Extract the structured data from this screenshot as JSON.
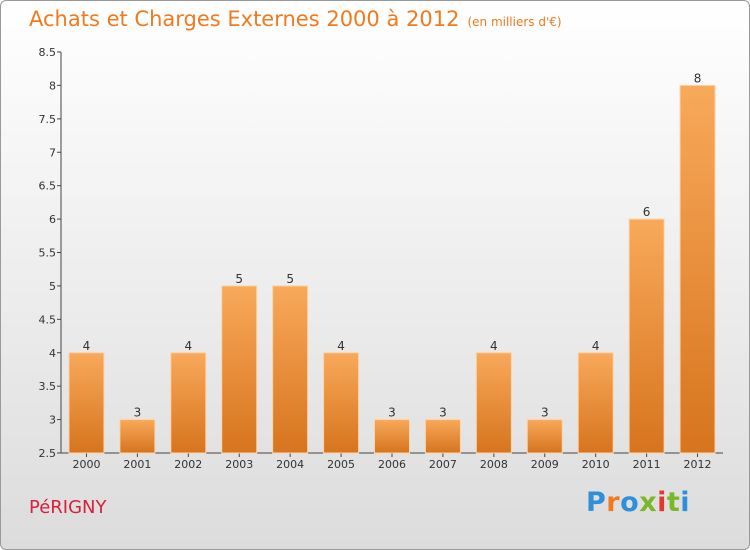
{
  "header": {
    "title": "Achats et Charges Externes 2000 à 2012",
    "unit": "(en milliers d'€)"
  },
  "footer": {
    "place": "PéRIGNY",
    "brand": "Proxiti"
  },
  "colors": {
    "title": "#f07a1e",
    "place": "#d8203a",
    "bar_top": "#f8a95a",
    "bar_bottom": "#d7741e",
    "brand_letters": [
      "#2f8fd8",
      "#f07a1e",
      "#2f8fd8",
      "#7ab828",
      "#e23a2a",
      "#7ab828",
      "#2f8fd8"
    ]
  },
  "chart_data": {
    "type": "bar",
    "title": "Achats et Charges Externes 2000 à 2012",
    "xlabel": "",
    "ylabel": "",
    "categories": [
      "2000",
      "2001",
      "2002",
      "2003",
      "2004",
      "2005",
      "2006",
      "2007",
      "2008",
      "2009",
      "2010",
      "2011",
      "2012"
    ],
    "values": [
      4,
      3,
      4,
      5,
      5,
      4,
      3,
      3,
      4,
      3,
      4,
      6,
      8
    ],
    "ylim": [
      2.5,
      8.5
    ],
    "yticks": [
      2.5,
      3,
      3.5,
      4,
      4.5,
      5,
      5.5,
      6,
      6.5,
      7,
      7.5,
      8,
      8.5
    ],
    "grid": false,
    "data_labels": true
  }
}
